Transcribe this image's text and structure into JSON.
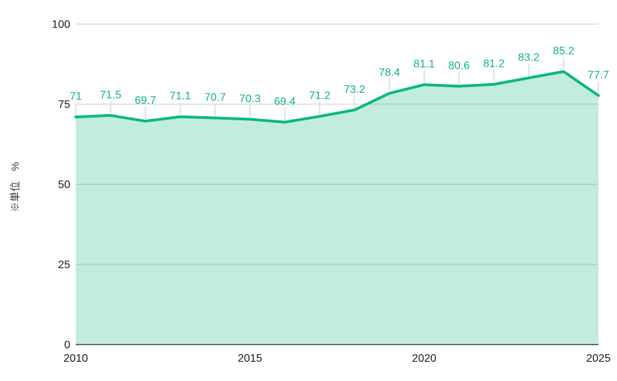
{
  "chart_data": {
    "type": "area",
    "title": "",
    "xlabel": "",
    "ylabel": "※単位　%",
    "x": [
      2010,
      2011,
      2012,
      2013,
      2014,
      2015,
      2016,
      2017,
      2018,
      2019,
      2020,
      2021,
      2022,
      2023,
      2024,
      2025
    ],
    "values": [
      71,
      71.5,
      69.7,
      71.1,
      70.7,
      70.3,
      69.4,
      71.2,
      73.2,
      78.4,
      81.1,
      80.6,
      81.2,
      83.2,
      85.2,
      77.7
    ],
    "data_labels_visible": true,
    "xlim": [
      2010,
      2025
    ],
    "ylim": [
      0,
      100
    ],
    "yticks": [
      0,
      25,
      50,
      75,
      100
    ],
    "xticks": [
      2010,
      2015,
      2020,
      2025
    ],
    "grid": true,
    "legend_position": "none",
    "colors": {
      "line": "#0bb97c",
      "fill": "rgba(11,185,124,0.25)",
      "data_label": "#0eb57a",
      "gridline": "#e2e2e2",
      "axis_line": "#6b6b6b",
      "tick_text": "#1a1a1a",
      "connector": "#e0e0e0",
      "background": "#ffffff"
    }
  }
}
